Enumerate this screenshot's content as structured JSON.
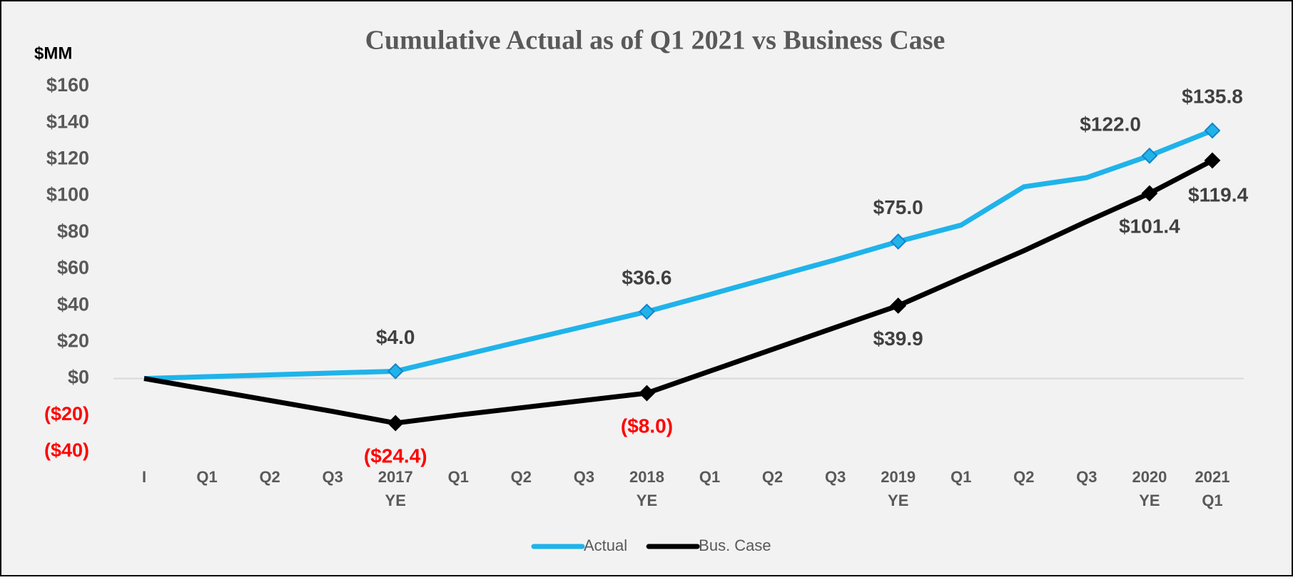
{
  "chart_data": {
    "type": "line",
    "title": "Cumulative Actual as of Q1 2021 vs Business Case",
    "y_label": "$MM",
    "categories": [
      [
        "I"
      ],
      [
        "Q1"
      ],
      [
        "Q2"
      ],
      [
        "Q3"
      ],
      [
        "2017",
        "YE"
      ],
      [
        "Q1"
      ],
      [
        "Q2"
      ],
      [
        "Q3"
      ],
      [
        "2018",
        "YE"
      ],
      [
        "Q1"
      ],
      [
        "Q2"
      ],
      [
        "Q3"
      ],
      [
        "2019",
        "YE"
      ],
      [
        "Q1"
      ],
      [
        "Q2"
      ],
      [
        "Q3"
      ],
      [
        "2020",
        "YE"
      ],
      [
        "2021",
        "Q1"
      ]
    ],
    "series": [
      {
        "name": "Actual",
        "color": "#1fb3ea",
        "values": [
          0,
          1,
          2,
          3,
          4.0,
          12.2,
          20.4,
          28.5,
          36.6,
          46,
          55.5,
          65,
          75.0,
          84,
          105,
          110,
          122.0,
          135.8
        ],
        "value_labels": [
          null,
          null,
          null,
          null,
          "$4.0",
          null,
          null,
          null,
          "$36.6",
          null,
          null,
          null,
          "$75.0",
          null,
          null,
          null,
          "$122.0",
          "$135.8"
        ]
      },
      {
        "name": "Bus. Case",
        "color": "#000000",
        "values": [
          0,
          -6,
          -12,
          -18,
          -24.4,
          -20,
          -16,
          -12,
          -8.0,
          4,
          16,
          28,
          39.9,
          55,
          70,
          86,
          101.4,
          119.4
        ],
        "value_labels": [
          null,
          null,
          null,
          null,
          "($24.4)",
          null,
          null,
          null,
          "($8.0)",
          null,
          null,
          null,
          "$39.9",
          null,
          null,
          null,
          "$101.4",
          "$119.4"
        ]
      }
    ],
    "ylim": [
      -40,
      160
    ],
    "yticks": [
      {
        "value": -40,
        "label": "($40)"
      },
      {
        "value": -20,
        "label": "($20)"
      },
      {
        "value": 0,
        "label": "$0"
      },
      {
        "value": 20,
        "label": "$20"
      },
      {
        "value": 40,
        "label": "$40"
      },
      {
        "value": 60,
        "label": "$60"
      },
      {
        "value": 80,
        "label": "$80"
      },
      {
        "value": 100,
        "label": "$100"
      },
      {
        "value": 120,
        "label": "$120"
      },
      {
        "value": 140,
        "label": "$140"
      },
      {
        "value": 160,
        "label": "$160"
      }
    ],
    "negative_color": "#ff0000",
    "legend": "bottom"
  }
}
